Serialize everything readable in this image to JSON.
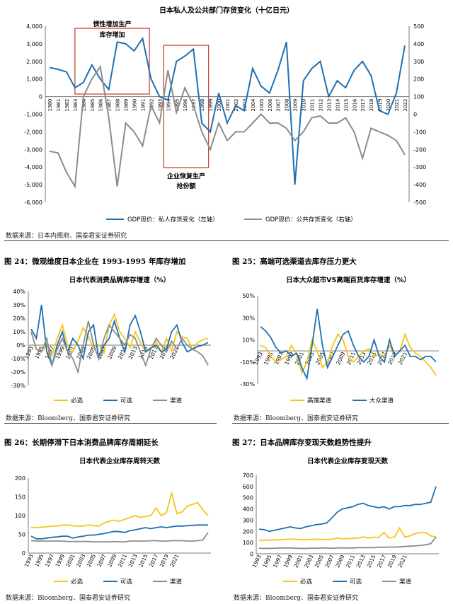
{
  "colors": {
    "blue": "#1f6fb2",
    "gray": "#8c8c8c",
    "yellow": "#f5c518",
    "anno_red": "#c0392b"
  },
  "figures": {
    "fig24": "图 24：微观维度日本企业在 1993-1995 年库存增加",
    "fig25": "图 25：高端可选渠道去库存压力更大",
    "fig26": "图 26：长期停滞下日本消费品牌库存周期延长",
    "fig27": "图 27：日本品牌库存变现天数趋势性提升"
  },
  "sources": {
    "s1": "数据来源：日本内阁府、国泰君安证券研究",
    "s2": "数据来源：Bloomberg、国泰君安证券研究",
    "s3": "数据来源：Bloomberg、国泰君安证券研究",
    "s4": "数据来源：Bloomberg、国泰君安证券研究",
    "s5": "数据来源：Bloomberg、国泰君安证券研究"
  },
  "chart_data": [
    {
      "id": "c1",
      "type": "line",
      "title": "日本私人及公共部门存货变化（十亿日元）",
      "x": [
        1980,
        1981,
        1982,
        1983,
        1984,
        1985,
        1986,
        1987,
        1988,
        1989,
        1990,
        1991,
        1992,
        1993,
        1994,
        1995,
        1996,
        1997,
        1998,
        1999,
        2000,
        2001,
        2002,
        2003,
        2004,
        2005,
        2006,
        2007,
        2008,
        2009,
        2010,
        2011,
        2012,
        2013,
        2014,
        2015,
        2016,
        2017,
        2018,
        2019,
        2020,
        2021,
        2022
      ],
      "x_tick_labels": [
        "1980",
        "1981",
        "1982",
        "1983",
        "1984",
        "1985",
        "1986",
        "1987",
        "1988",
        "1989",
        "1990",
        "1991",
        "1992",
        "1993",
        "1994",
        "1995",
        "1996",
        "1997",
        "1998",
        "1999",
        "2000",
        "2001",
        "2002",
        "2003",
        "2004",
        "2005",
        "2006",
        "2007",
        "2008",
        "2009",
        "2010",
        "2011",
        "2012",
        "2013",
        "2014",
        "2015",
        "2016",
        "2017",
        "2018",
        "2019",
        "2020",
        "2021",
        "2022"
      ],
      "ylim_left": [
        -6000,
        4000
      ],
      "yticks_left": [
        "4,000",
        "3,000",
        "2,000",
        "1,000",
        "0",
        "-1,000",
        "-2,000",
        "-3,000",
        "-4,000",
        "-5,000",
        "-6,000"
      ],
      "ylim_right": [
        -500,
        500
      ],
      "yticks_right": [
        "500",
        "400",
        "300",
        "200",
        "100",
        "0",
        "-100",
        "-200",
        "-300",
        "-400",
        "-500"
      ],
      "series": [
        {
          "name": "GDP现价：私人存货变化（左轴）",
          "axis": "left",
          "color": "#1f6fb2",
          "values": [
            1650,
            1550,
            1400,
            500,
            800,
            1800,
            1000,
            400,
            3100,
            3000,
            2600,
            3300,
            1000,
            0,
            -200,
            2000,
            2300,
            2700,
            -1500,
            -2000,
            200,
            -1500,
            -500,
            -800,
            1600,
            600,
            200,
            1500,
            3100,
            -5000,
            900,
            1600,
            2000,
            0,
            900,
            500,
            1500,
            2000,
            1200,
            -800,
            -1000,
            200,
            2900
          ]
        },
        {
          "name": "GDP现价：公共存货变化（右轴）",
          "axis": "right",
          "color": "#8c8c8c",
          "values": [
            -210,
            -220,
            -330,
            -410,
            100,
            200,
            270,
            -20,
            -410,
            -50,
            -100,
            -180,
            50,
            -50,
            250,
            10,
            150,
            50,
            -100,
            -200,
            -50,
            -150,
            -100,
            -100,
            -50,
            0,
            -50,
            -50,
            -80,
            -150,
            -100,
            -20,
            -10,
            -50,
            -50,
            -20,
            -100,
            -250,
            -80,
            -100,
            -120,
            -150,
            -230
          ]
        }
      ],
      "annotations": [
        "惯性增加生产",
        "库存增加",
        "企业恢复生产",
        "抢份额"
      ]
    },
    {
      "id": "c2",
      "type": "line",
      "title": "日本代表消费品牌库存增速（%）",
      "x_tick_labels": [
        "1993",
        "1995",
        "1997",
        "1999",
        "2001",
        "2003",
        "2005",
        "2007",
        "2009",
        "2011",
        "2013",
        "2015",
        "2017",
        "2019",
        "2021"
      ],
      "ylim": [
        -30,
        40
      ],
      "yticks": [
        "40%",
        "30%",
        "20%",
        "10%",
        "0%",
        "-10%",
        "-20%",
        "-30%"
      ],
      "series": [
        {
          "name": "必选",
          "color": "#f5c518",
          "values": [
            10,
            -3,
            -5,
            0,
            -8,
            5,
            15,
            0,
            -5,
            3,
            13,
            6,
            -2,
            0,
            -6,
            15,
            23,
            10,
            5,
            -2,
            10,
            2,
            -5,
            -3,
            3,
            -5,
            5,
            -4,
            10,
            6,
            5,
            -3,
            2,
            4,
            5
          ]
        },
        {
          "name": "可选",
          "color": "#1f6fb2",
          "values": [
            12,
            5,
            30,
            -5,
            -15,
            0,
            10,
            -5,
            5,
            0,
            -10,
            10,
            15,
            -10,
            0,
            5,
            18,
            5,
            -5,
            15,
            22,
            10,
            -5,
            -2,
            0,
            -5,
            -3,
            10,
            15,
            2,
            -5,
            -3,
            -1,
            0,
            2
          ]
        },
        {
          "name": "渠道",
          "color": "#8c8c8c",
          "values": [
            10,
            -3,
            -5,
            5,
            -15,
            -3,
            5,
            -5,
            -10,
            -20,
            0,
            18,
            0,
            -10,
            5,
            15,
            10,
            5,
            0,
            8,
            5,
            -5,
            -15,
            -3,
            5,
            0,
            -5,
            3,
            -3,
            5,
            0,
            -3,
            -5,
            -8,
            -15
          ]
        }
      ]
    },
    {
      "id": "c3",
      "type": "line",
      "title": "日本大众超市VS高端百货库存增速（%）",
      "x_tick_labels": [
        "1993",
        "1995",
        "1997",
        "1999",
        "2001",
        "2003",
        "2005",
        "2007",
        "2009",
        "2011",
        "2013",
        "2015",
        "2017",
        "2019",
        "2021"
      ],
      "ylim": [
        -30,
        50
      ],
      "yticks": [
        "50%",
        "30%",
        "10%",
        "-10%",
        "-30%"
      ],
      "series": [
        {
          "name": "高端渠道",
          "color": "#f5c518",
          "values": [
            5,
            3,
            -5,
            -10,
            -8,
            -5,
            5,
            -3,
            -20,
            -10,
            10,
            0,
            -15,
            -10,
            5,
            15,
            10,
            -5,
            -10,
            -5,
            0,
            2,
            -5,
            -3,
            -5,
            5,
            -5,
            0,
            15,
            3,
            -2,
            -5,
            -10,
            -15,
            -22
          ]
        },
        {
          "name": "大众渠道",
          "color": "#1f6fb2",
          "values": [
            22,
            18,
            12,
            3,
            -2,
            0,
            -5,
            -2,
            -15,
            -25,
            5,
            38,
            5,
            -15,
            -5,
            5,
            15,
            18,
            5,
            -5,
            -10,
            -5,
            10,
            -5,
            -10,
            10,
            -5,
            0,
            5,
            -5,
            -5,
            -8,
            -5,
            -5,
            -10
          ]
        }
      ]
    },
    {
      "id": "c4",
      "type": "line",
      "title": "日本代表企业库存周转天数",
      "x_tick_labels": [
        "1993",
        "1995",
        "1997",
        "1999",
        "2001",
        "2003",
        "2005",
        "2007",
        "2009",
        "2011",
        "2013",
        "2015",
        "2017",
        "2019",
        "2021"
      ],
      "ylim": [
        0,
        200
      ],
      "yticks": [
        "200",
        "150",
        "100",
        "50",
        "0"
      ],
      "series": [
        {
          "name": "必选",
          "color": "#f5c518",
          "values": [
            68,
            68,
            69,
            70,
            72,
            72,
            75,
            75,
            73,
            72,
            72,
            75,
            73,
            72,
            80,
            85,
            88,
            85,
            90,
            95,
            100,
            95,
            98,
            100,
            120,
            100,
            108,
            160,
            105,
            110,
            125,
            130,
            135,
            115,
            100
          ]
        },
        {
          "name": "可选",
          "color": "#1f6fb2",
          "values": [
            45,
            38,
            38,
            40,
            42,
            43,
            45,
            45,
            40,
            43,
            45,
            48,
            48,
            50,
            52,
            55,
            58,
            57,
            55,
            60,
            62,
            65,
            68,
            65,
            68,
            70,
            68,
            70,
            72,
            72,
            73,
            74,
            75,
            75,
            75
          ]
        },
        {
          "name": "渠道",
          "color": "#8c8c8c",
          "values": [
            33,
            32,
            32,
            32,
            32,
            32,
            32,
            31,
            31,
            31,
            31,
            31,
            30,
            30,
            30,
            30,
            31,
            30,
            30,
            32,
            32,
            32,
            32,
            33,
            33,
            32,
            32,
            33,
            33,
            33,
            32,
            32,
            33,
            35,
            55
          ]
        }
      ]
    },
    {
      "id": "c5",
      "type": "line",
      "title": "日本代表企业库存变现天数",
      "x_tick_labels": [
        "1993",
        "1995",
        "1997",
        "1999",
        "2001",
        "2003",
        "2005",
        "2007",
        "2009",
        "2011",
        "2013",
        "2015",
        "2017",
        "2019",
        "2021"
      ],
      "ylim": [
        0,
        700
      ],
      "yticks": [
        "700",
        "600",
        "500",
        "400",
        "300",
        "200",
        "100",
        "0"
      ],
      "series": [
        {
          "name": "必选",
          "color": "#f5c518",
          "values": [
            120,
            120,
            122,
            125,
            125,
            128,
            130,
            130,
            125,
            125,
            128,
            130,
            128,
            127,
            130,
            140,
            135,
            135,
            138,
            140,
            150,
            140,
            148,
            145,
            190,
            140,
            150,
            230,
            150,
            160,
            180,
            190,
            190,
            160,
            150
          ]
        },
        {
          "name": "可选",
          "color": "#1f6fb2",
          "values": [
            220,
            215,
            200,
            210,
            220,
            230,
            240,
            230,
            225,
            240,
            250,
            260,
            265,
            275,
            320,
            370,
            400,
            410,
            420,
            440,
            450,
            430,
            420,
            410,
            420,
            400,
            420,
            420,
            430,
            430,
            440,
            440,
            450,
            460,
            600
          ]
        },
        {
          "name": "渠道",
          "color": "#8c8c8c",
          "values": [
            50,
            48,
            48,
            50,
            52,
            52,
            52,
            50,
            48,
            48,
            50,
            50,
            52,
            52,
            50,
            52,
            53,
            52,
            52,
            55,
            55,
            55,
            55,
            58,
            58,
            60,
            60,
            62,
            65,
            68,
            70,
            75,
            80,
            90,
            150
          ]
        }
      ]
    }
  ]
}
